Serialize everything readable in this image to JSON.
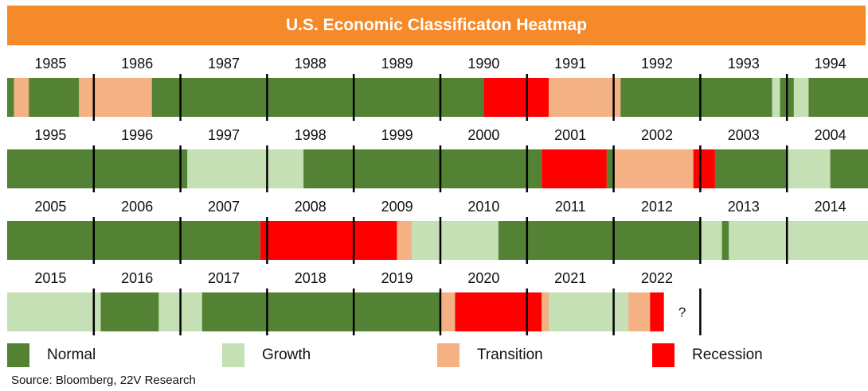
{
  "chart_data": {
    "type": "heatmap",
    "title": "U.S. Economic Classificaton Heatmap",
    "source": "Source: Bloomberg, 22V Research",
    "colors": {
      "Normal": "#548235",
      "Growth": "#C5E0B4",
      "Transition": "#F4B183",
      "Recession": "#FF0000",
      "title_bg": "#F58A2A"
    },
    "legend": [
      "Normal",
      "Growth",
      "Transition",
      "Recession"
    ],
    "pending_marker": "?",
    "rows": [
      {
        "years": [
          "1985",
          "1986",
          "1987",
          "1988",
          "1989",
          "1990",
          "1991",
          "1992",
          "1993",
          "1994"
        ],
        "segments": [
          {
            "start": 1985.0,
            "end": 1985.08,
            "state": "Normal"
          },
          {
            "start": 1985.08,
            "end": 1985.25,
            "state": "Transition"
          },
          {
            "start": 1985.25,
            "end": 1985.83,
            "state": "Normal"
          },
          {
            "start": 1985.83,
            "end": 1986.0,
            "state": "Transition"
          },
          {
            "start": 1986.0,
            "end": 1986.67,
            "state": "Transition"
          },
          {
            "start": 1986.67,
            "end": 1987.0,
            "state": "Normal"
          },
          {
            "start": 1987.0,
            "end": 1990.5,
            "state": "Normal"
          },
          {
            "start": 1990.5,
            "end": 1991.25,
            "state": "Recession"
          },
          {
            "start": 1991.25,
            "end": 1991.92,
            "state": "Transition"
          },
          {
            "start": 1991.92,
            "end": 1992.08,
            "state": "Transition"
          },
          {
            "start": 1992.08,
            "end": 1993.83,
            "state": "Normal"
          },
          {
            "start": 1993.83,
            "end": 1993.92,
            "state": "Growth"
          },
          {
            "start": 1993.92,
            "end": 1994.0,
            "state": "Normal"
          },
          {
            "start": 1994.0,
            "end": 1994.08,
            "state": "Normal"
          },
          {
            "start": 1994.08,
            "end": 1994.25,
            "state": "Growth"
          },
          {
            "start": 1994.25,
            "end": 1995.0,
            "state": "Normal"
          }
        ]
      },
      {
        "years": [
          "1995",
          "1996",
          "1997",
          "1998",
          "1999",
          "2000",
          "2001",
          "2002",
          "2003",
          "2004"
        ],
        "segments": [
          {
            "start": 1995.0,
            "end": 1997.08,
            "state": "Normal"
          },
          {
            "start": 1997.08,
            "end": 1998.0,
            "state": "Growth"
          },
          {
            "start": 1998.0,
            "end": 1998.42,
            "state": "Growth"
          },
          {
            "start": 1998.42,
            "end": 2001.17,
            "state": "Normal"
          },
          {
            "start": 2001.17,
            "end": 2001.92,
            "state": "Recession"
          },
          {
            "start": 2001.92,
            "end": 2002.0,
            "state": "Normal"
          },
          {
            "start": 2002.0,
            "end": 2002.92,
            "state": "Transition"
          },
          {
            "start": 2002.92,
            "end": 2003.17,
            "state": "Recession"
          },
          {
            "start": 2003.17,
            "end": 2003.92,
            "state": "Normal"
          },
          {
            "start": 2003.92,
            "end": 2004.0,
            "state": "Normal"
          },
          {
            "start": 2004.0,
            "end": 2004.5,
            "state": "Growth"
          },
          {
            "start": 2004.5,
            "end": 2005.0,
            "state": "Normal"
          }
        ]
      },
      {
        "years": [
          "2005",
          "2006",
          "2007",
          "2008",
          "2009",
          "2010",
          "2011",
          "2012",
          "2013",
          "2014"
        ],
        "segments": [
          {
            "start": 2005.0,
            "end": 2007.92,
            "state": "Normal"
          },
          {
            "start": 2007.92,
            "end": 2009.5,
            "state": "Recession"
          },
          {
            "start": 2009.5,
            "end": 2009.67,
            "state": "Transition"
          },
          {
            "start": 2009.67,
            "end": 2010.0,
            "state": "Growth"
          },
          {
            "start": 2010.0,
            "end": 2010.67,
            "state": "Growth"
          },
          {
            "start": 2010.67,
            "end": 2013.0,
            "state": "Normal"
          },
          {
            "start": 2013.0,
            "end": 2013.25,
            "state": "Growth"
          },
          {
            "start": 2013.25,
            "end": 2013.33,
            "state": "Normal"
          },
          {
            "start": 2013.33,
            "end": 2015.0,
            "state": "Growth"
          }
        ]
      },
      {
        "years": [
          "2015",
          "2016",
          "2017",
          "2018",
          "2019",
          "2020",
          "2021",
          "2022"
        ],
        "segments": [
          {
            "start": 2015.0,
            "end": 2016.08,
            "state": "Growth"
          },
          {
            "start": 2016.08,
            "end": 2016.75,
            "state": "Normal"
          },
          {
            "start": 2016.75,
            "end": 2017.0,
            "state": "Growth"
          },
          {
            "start": 2017.0,
            "end": 2017.25,
            "state": "Growth"
          },
          {
            "start": 2017.25,
            "end": 2020.0,
            "state": "Normal"
          },
          {
            "start": 2020.0,
            "end": 2020.17,
            "state": "Transition"
          },
          {
            "start": 2020.17,
            "end": 2021.17,
            "state": "Recession"
          },
          {
            "start": 2021.17,
            "end": 2021.25,
            "state": "Transition"
          },
          {
            "start": 2021.25,
            "end": 2022.0,
            "state": "Growth"
          },
          {
            "start": 2022.0,
            "end": 2022.17,
            "state": "Growth"
          },
          {
            "start": 2022.17,
            "end": 2022.42,
            "state": "Transition"
          },
          {
            "start": 2022.42,
            "end": 2022.58,
            "state": "Recession"
          }
        ]
      }
    ]
  }
}
